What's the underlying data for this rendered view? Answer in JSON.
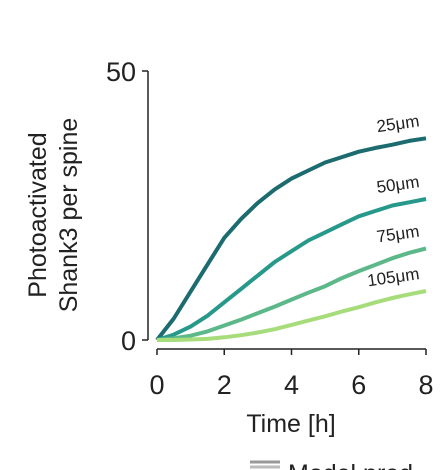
{
  "chart_data": {
    "type": "line",
    "y_label_lines": [
      "Photoactivated",
      "Shank3 per spine"
    ],
    "x_label": "Time [h]",
    "legend_label": "Model pred",
    "x": [
      0,
      0.5,
      1,
      1.5,
      2,
      2.5,
      3,
      3.5,
      4,
      4.5,
      5,
      5.5,
      6,
      6.5,
      7,
      7.5,
      8
    ],
    "xlim": [
      0,
      8
    ],
    "xticks": [
      0,
      2,
      4,
      6,
      8
    ],
    "ylim": [
      0,
      50
    ],
    "yticks": [
      0,
      50
    ],
    "series": [
      {
        "name": "25μm",
        "color": "#1b6b6f",
        "values": [
          0,
          4,
          9,
          14,
          19,
          22.5,
          25.5,
          28,
          30,
          31.5,
          33,
          34,
          35,
          35.7,
          36.3,
          37,
          37.5
        ]
      },
      {
        "name": "50μm",
        "color": "#27998a",
        "values": [
          0,
          1,
          2.5,
          4.5,
          7,
          9.5,
          12,
          14.5,
          16.5,
          18.5,
          20,
          21.5,
          23,
          24,
          25,
          25.6,
          26.2
        ]
      },
      {
        "name": "75μm",
        "color": "#5cb889",
        "values": [
          0,
          0.3,
          0.8,
          1.6,
          2.7,
          3.8,
          5,
          6.2,
          7.5,
          8.8,
          10,
          11.5,
          12.8,
          14,
          15.2,
          16.2,
          17
        ]
      },
      {
        "name": "105μm",
        "color": "#a6dd7a",
        "values": [
          0,
          0,
          0.1,
          0.2,
          0.5,
          0.9,
          1.4,
          2,
          2.8,
          3.6,
          4.4,
          5.3,
          6.1,
          7,
          7.8,
          8.5,
          9.1
        ]
      }
    ]
  }
}
